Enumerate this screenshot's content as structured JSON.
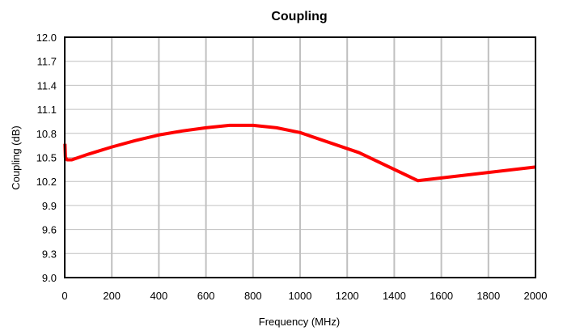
{
  "chart_data": {
    "type": "line",
    "title": "Coupling",
    "xlabel": "Frequency (MHz)",
    "ylabel": "Coupling (dB)",
    "xlim": [
      0,
      2000
    ],
    "ylim": [
      9.0,
      12.0
    ],
    "x_ticks": [
      0,
      200,
      400,
      600,
      800,
      1000,
      1200,
      1400,
      1600,
      1800,
      2000
    ],
    "y_ticks": [
      9.0,
      9.3,
      9.6,
      9.9,
      10.2,
      10.5,
      10.8,
      11.1,
      11.4,
      11.7,
      12.0
    ],
    "x_tick_labels": [
      "0",
      "200",
      "400",
      "600",
      "800",
      "1000",
      "1200",
      "1400",
      "1600",
      "1800",
      "2000"
    ],
    "y_tick_labels": [
      "9.0",
      "9.3",
      "9.6",
      "9.9",
      "10.2",
      "10.5",
      "10.8",
      "11.1",
      "11.4",
      "11.7",
      "12.0"
    ],
    "grid": {
      "vertical": true,
      "horizontal": true
    },
    "colors": {
      "series": "#ff0000",
      "major_grid": "#c0c0c0",
      "minor_grid": "#c0c0c0"
    },
    "series": [
      {
        "x": [
          1,
          3,
          10,
          30,
          50,
          100,
          200,
          300,
          400,
          500,
          600,
          700,
          800,
          900,
          1000,
          1250,
          1500,
          2000
        ],
        "y": [
          10.67,
          10.5,
          10.47,
          10.47,
          10.49,
          10.54,
          10.63,
          10.71,
          10.78,
          10.83,
          10.87,
          10.9,
          10.9,
          10.87,
          10.81,
          10.56,
          10.21,
          10.38
        ]
      }
    ]
  }
}
